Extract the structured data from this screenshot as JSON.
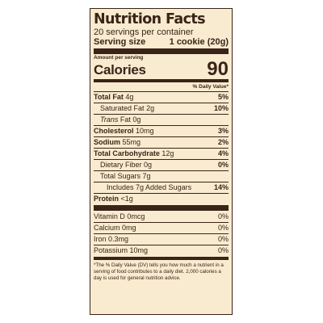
{
  "label": {
    "title": "Nutrition Facts",
    "servings_per_container": "20 servings per container",
    "serving_size_label": "Serving size",
    "serving_size_value": "1 cookie (20g)",
    "amount_per_serving": "Amount per serving",
    "calories_label": "Calories",
    "calories_value": "90",
    "daily_value_header": "% Daily Value*",
    "rows": [
      {
        "name": "Total Fat",
        "amount": "4g",
        "dv": "5%"
      },
      {
        "name": "Saturated Fat",
        "amount": "2g",
        "dv": "10%"
      },
      {
        "name": "Trans",
        "name_suffix": "Fat",
        "amount": "0g",
        "dv": ""
      },
      {
        "name": "Cholesterol",
        "amount": "10mg",
        "dv": "3%"
      },
      {
        "name": "Sodium",
        "amount": "55mg",
        "dv": "2%"
      },
      {
        "name": "Total Carbohydrate",
        "amount": "12g",
        "dv": "4%"
      },
      {
        "name": "Dietary Fiber",
        "amount": "0g",
        "dv": "0%"
      },
      {
        "name": "Total Sugars",
        "amount": "7g",
        "dv": ""
      },
      {
        "name": "Includes 7g Added Sugars",
        "amount": "",
        "dv": "14%"
      },
      {
        "name": "Protein",
        "amount": "<1g",
        "dv": ""
      }
    ],
    "vitamins": [
      {
        "name": "Vitamin D",
        "amount": "0mcg",
        "dv": "0%"
      },
      {
        "name": "Calcium",
        "amount": "0mg",
        "dv": "0%"
      },
      {
        "name": "Iron",
        "amount": "0.3mg",
        "dv": "0%"
      },
      {
        "name": "Potassium",
        "amount": "10mg",
        "dv": "0%"
      }
    ],
    "footnote": "*The % Daily Value (DV) tells you how much a nutrient in a serving of food contributes to a daily diet. 2,000 calories a day is used for general nutrition advice.",
    "colors": {
      "background": "#f8ebd0",
      "ink": "#3a2418"
    }
  }
}
